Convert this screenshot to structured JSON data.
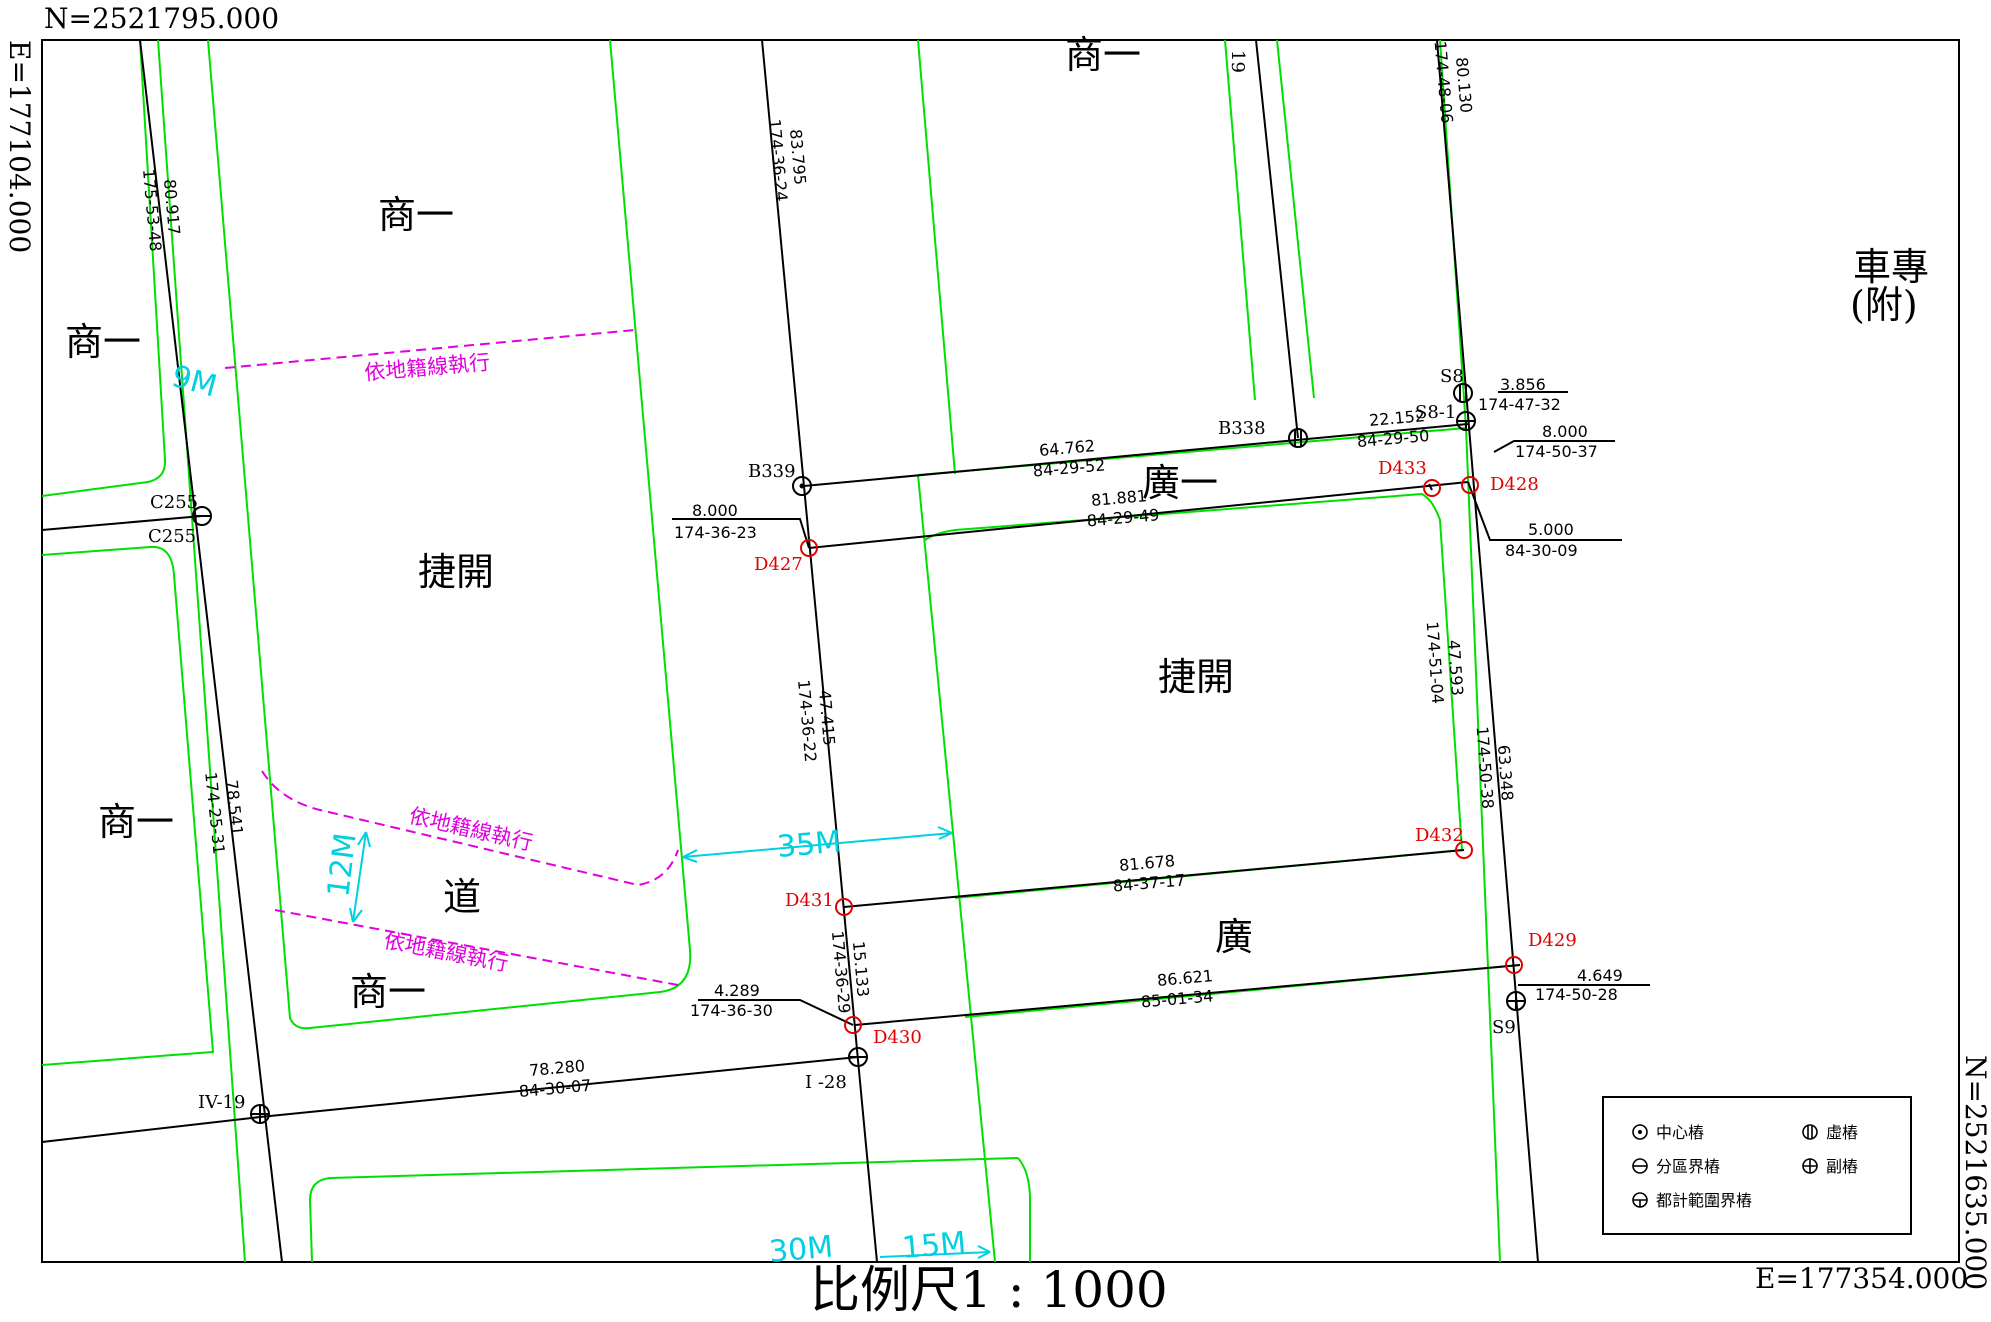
{
  "frame": {
    "north_top": "N=2521795.000",
    "east_left": "E=177104.000",
    "north_right": "N=2521635.000",
    "east_bottom": "E=177354.000",
    "scale": "比例尺1 : 1000"
  },
  "zones": {
    "shang_top_center": "商一",
    "shang_left_upper": "商一",
    "shang_upper_mid": "商一",
    "shang_left_lower": "商一",
    "shang_bottom": "商一",
    "jiekai_left": "捷開",
    "jiekai_right": "捷開",
    "guang_yi": "廣一",
    "guang": "廣",
    "dao": "道",
    "chezhuan": "車專",
    "fu": "(附)"
  },
  "points": {
    "B339": "B339",
    "B338": "B338",
    "C255_top": "C255",
    "C255_bottom": "C255",
    "S8": "S8",
    "S8_1": "S8-1",
    "S9": "S9",
    "IV19": "IV-19",
    "I28": "I -28",
    "D427": "D427",
    "D428": "D428",
    "D429": "D429",
    "D430": "D430",
    "D431": "D431",
    "D432": "D432",
    "D433": "D433",
    "n19": "19"
  },
  "measurements": {
    "m1_dist": "80.130",
    "m1_ang": "174-48-06",
    "m2_dist": "83.795",
    "m2_ang": "174-36-24",
    "m3_dist": "80.917",
    "m3_ang": "175-53-48",
    "m4_dist": "64.762",
    "m4_ang": "84-29-52",
    "m5_dist": "22.152",
    "m5_ang": "84-29-50",
    "m6_dist": "3.856",
    "m6_ang": "174-47-32",
    "m7_dist": "8.000",
    "m7_ang": "174-50-37",
    "m8_dist": "8.000",
    "m8_ang": "174-36-23",
    "m9_dist": "81.881",
    "m9_ang": "84-29-49",
    "m10_dist": "5.000",
    "m10_ang": "84-30-09",
    "m11_dist": "47.593",
    "m11_ang": "174-51-04",
    "m12_dist": "47.415",
    "m12_ang": "174-36-22",
    "m13_dist": "63.348",
    "m13_ang": "174-50-38",
    "m14_dist": "78.541",
    "m14_ang": "174-25-31",
    "m15_dist": "81.678",
    "m15_ang": "84-37-17",
    "m16_dist": "15.133",
    "m16_ang": "174-36-29",
    "m17_dist": "4.289",
    "m17_ang": "174-36-30",
    "m18_dist": "86.621",
    "m18_ang": "85-01-34",
    "m19_dist": "4.649",
    "m19_ang": "174-50-28",
    "m20_dist": "78.280",
    "m20_ang": "84-30-07"
  },
  "annotations": {
    "cadastral_1": "依地籍線執行",
    "cadastral_2": "依地籍線執行",
    "cadastral_3": "依地籍線執行",
    "w9m": "9M",
    "w35m": "35M",
    "w12m": "12M",
    "w15m": "15M",
    "w30m": "30M"
  },
  "legend": {
    "center": "中心樁",
    "virtual": "虛樁",
    "district": "分區界樁",
    "secondary": "副樁",
    "urban": "都計範圍界樁"
  },
  "colors": {
    "zoning_line": "#00e000",
    "survey_line": "#000000",
    "cadastral_line": "#e000e0",
    "width_dim": "#00d0e0",
    "point_red": "#e00000"
  }
}
